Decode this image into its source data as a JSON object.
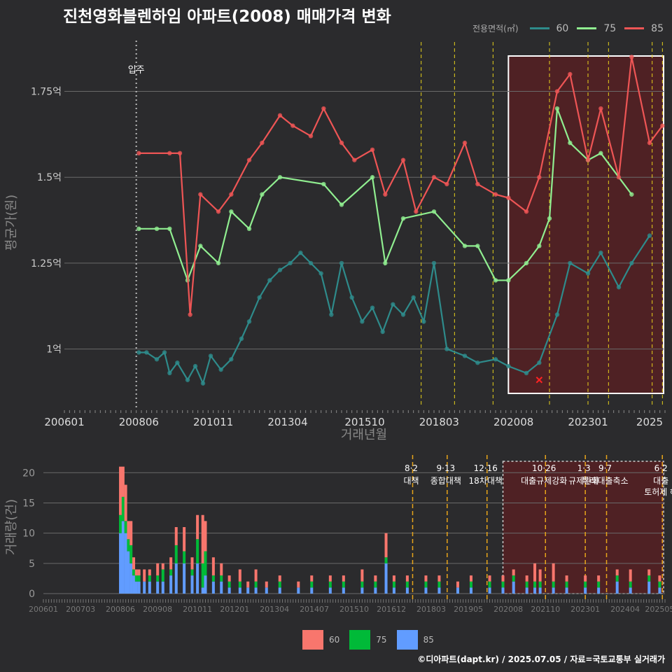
{
  "title": "진천영화블렌하임 아파트(2008) 매매가격 변화",
  "legend": {
    "title": "전용면적(㎡)",
    "items": [
      {
        "label": "60",
        "color": "#2e8b8b"
      },
      {
        "label": "75",
        "color": "#90ee90"
      },
      {
        "label": "85",
        "color": "#ee5555"
      }
    ]
  },
  "bar_legend": [
    {
      "label": "60",
      "color": "#f8766d"
    },
    {
      "label": "75",
      "color": "#00ba38"
    },
    {
      "label": "85",
      "color": "#619cff"
    }
  ],
  "footer": "©디아파트(dapt.kr) / 2025.07.05 / 자료=국토교통부 실거래가",
  "chart_data": [
    {
      "type": "line",
      "ylabel": "평균가(원)",
      "xlabel": "거래년월",
      "x_ticks": [
        "200601",
        "200806",
        "201011",
        "201304",
        "201510",
        "201803",
        "202008",
        "202301",
        "2025"
      ],
      "y_ticks": [
        "1억",
        "1.25억",
        "1.5억",
        "1.75억"
      ],
      "ylim": [
        0.83,
        1.91
      ],
      "xlim": [
        "2006-01",
        "2025-07"
      ],
      "annotations": [
        {
          "x": "2008-05",
          "label": "입주"
        }
      ],
      "policy_lines": [
        "2017-08",
        "2018-09",
        "2019-12",
        "2021-10",
        "2023-01",
        "2023-09",
        "2025-02",
        "2025-06"
      ],
      "highlight_range": [
        "2020-06",
        "2025-07"
      ],
      "marker": {
        "x": "2021-06",
        "y": 0.91
      },
      "series": [
        {
          "name": "60",
          "color": "#2e8b8b",
          "points": [
            [
              "2008-06",
              0.99
            ],
            [
              "2008-09",
              0.99
            ],
            [
              "2009-01",
              0.97
            ],
            [
              "2009-04",
              0.99
            ],
            [
              "2009-06",
              0.93
            ],
            [
              "2009-09",
              0.96
            ],
            [
              "2010-01",
              0.91
            ],
            [
              "2010-04",
              0.95
            ],
            [
              "2010-07",
              0.9
            ],
            [
              "2010-10",
              0.98
            ],
            [
              "2011-02",
              0.94
            ],
            [
              "2011-06",
              0.97
            ],
            [
              "2011-10",
              1.03
            ],
            [
              "2012-01",
              1.08
            ],
            [
              "2012-05",
              1.15
            ],
            [
              "2012-09",
              1.2
            ],
            [
              "2013-01",
              1.23
            ],
            [
              "2013-05",
              1.25
            ],
            [
              "2013-09",
              1.28
            ],
            [
              "2014-01",
              1.25
            ],
            [
              "2014-05",
              1.22
            ],
            [
              "2014-09",
              1.1
            ],
            [
              "2015-01",
              1.25
            ],
            [
              "2015-05",
              1.15
            ],
            [
              "2015-09",
              1.08
            ],
            [
              "2016-01",
              1.12
            ],
            [
              "2016-05",
              1.05
            ],
            [
              "2016-09",
              1.13
            ],
            [
              "2017-01",
              1.1
            ],
            [
              "2017-05",
              1.15
            ],
            [
              "2017-09",
              1.08
            ],
            [
              "2018-01",
              1.25
            ],
            [
              "2018-06",
              1.0
            ],
            [
              "2019-01",
              0.98
            ],
            [
              "2019-06",
              0.96
            ],
            [
              "2020-01",
              0.97
            ],
            [
              "2020-06",
              0.95
            ],
            [
              "2021-01",
              0.93
            ],
            [
              "2021-06",
              0.96
            ],
            [
              "2022-01",
              1.1
            ],
            [
              "2022-06",
              1.25
            ],
            [
              "2023-01",
              1.22
            ],
            [
              "2023-06",
              1.28
            ],
            [
              "2024-01",
              1.18
            ],
            [
              "2024-06",
              1.25
            ],
            [
              "2025-01",
              1.33
            ]
          ]
        },
        {
          "name": "75",
          "color": "#90ee90",
          "points": [
            [
              "2008-06",
              1.35
            ],
            [
              "2009-01",
              1.35
            ],
            [
              "2009-06",
              1.35
            ],
            [
              "2010-01",
              1.2
            ],
            [
              "2010-06",
              1.3
            ],
            [
              "2011-01",
              1.25
            ],
            [
              "2011-06",
              1.4
            ],
            [
              "2012-01",
              1.35
            ],
            [
              "2012-06",
              1.45
            ],
            [
              "2013-01",
              1.5
            ],
            [
              "2014-06",
              1.48
            ],
            [
              "2015-01",
              1.42
            ],
            [
              "2016-01",
              1.5
            ],
            [
              "2016-06",
              1.25
            ],
            [
              "2017-01",
              1.38
            ],
            [
              "2018-01",
              1.4
            ],
            [
              "2019-01",
              1.3
            ],
            [
              "2019-06",
              1.3
            ],
            [
              "2020-01",
              1.2
            ],
            [
              "2020-06",
              1.2
            ],
            [
              "2021-01",
              1.25
            ],
            [
              "2021-06",
              1.3
            ],
            [
              "2021-10",
              1.38
            ],
            [
              "2022-01",
              1.7
            ],
            [
              "2022-06",
              1.6
            ],
            [
              "2023-01",
              1.55
            ],
            [
              "2023-06",
              1.57
            ],
            [
              "2024-06",
              1.45
            ]
          ]
        },
        {
          "name": "85",
          "color": "#ee5555",
          "points": [
            [
              "2008-06",
              1.57
            ],
            [
              "2009-06",
              1.57
            ],
            [
              "2009-10",
              1.57
            ],
            [
              "2010-02",
              1.1
            ],
            [
              "2010-06",
              1.45
            ],
            [
              "2011-01",
              1.4
            ],
            [
              "2011-06",
              1.45
            ],
            [
              "2012-01",
              1.55
            ],
            [
              "2012-06",
              1.6
            ],
            [
              "2013-01",
              1.68
            ],
            [
              "2013-06",
              1.65
            ],
            [
              "2014-01",
              1.62
            ],
            [
              "2014-06",
              1.7
            ],
            [
              "2015-01",
              1.6
            ],
            [
              "2015-06",
              1.55
            ],
            [
              "2016-01",
              1.58
            ],
            [
              "2016-06",
              1.45
            ],
            [
              "2017-01",
              1.55
            ],
            [
              "2017-06",
              1.4
            ],
            [
              "2018-01",
              1.5
            ],
            [
              "2018-06",
              1.48
            ],
            [
              "2019-01",
              1.6
            ],
            [
              "2019-06",
              1.48
            ],
            [
              "2020-01",
              1.45
            ],
            [
              "2020-06",
              1.44
            ],
            [
              "2021-01",
              1.4
            ],
            [
              "2021-06",
              1.5
            ],
            [
              "2022-01",
              1.75
            ],
            [
              "2022-06",
              1.8
            ],
            [
              "2023-01",
              1.55
            ],
            [
              "2023-06",
              1.7
            ],
            [
              "2024-01",
              1.5
            ],
            [
              "2024-06",
              1.85
            ],
            [
              "2025-01",
              1.6
            ],
            [
              "2025-06",
              1.65
            ]
          ]
        }
      ]
    },
    {
      "type": "bar",
      "ylabel": "거래량(건)",
      "ylim": [
        0,
        22
      ],
      "y_ticks": [
        "0",
        "5",
        "10",
        "15",
        "20"
      ],
      "x_ticks": [
        "200601",
        "200703",
        "200806",
        "200908",
        "201011",
        "201201",
        "201304",
        "201407",
        "201510",
        "201612",
        "201803",
        "201905",
        "202008",
        "202110",
        "202301",
        "202404",
        "202505"
      ],
      "policies": [
        {
          "x": "2017-08",
          "date": "8·2",
          "label": "대책"
        },
        {
          "x": "2018-09",
          "date": "9·13",
          "label": "종합대책"
        },
        {
          "x": "2019-12",
          "date": "12·16",
          "label": "18차대책"
        },
        {
          "x": "2021-10",
          "date": "10·26",
          "label": "대출규제강화"
        },
        {
          "x": "2023-01",
          "date": "1·3",
          "label": "규제완화"
        },
        {
          "x": "2023-09",
          "date": "9·7",
          "label": "특례대출축소"
        },
        {
          "x": "2025-06",
          "date": "6·2",
          "label": "대출"
        },
        {
          "x": "2025-06",
          "date": "",
          "label": "토허제 해"
        }
      ],
      "highlight_range": [
        "2020-06",
        "2025-07"
      ],
      "series_names": [
        "60",
        "75",
        "85"
      ],
      "bars": [
        [
          "2008-06",
          8,
          3,
          10
        ],
        [
          "2008-07",
          5,
          4,
          12
        ],
        [
          "2008-08",
          6,
          2,
          10
        ],
        [
          "2008-09",
          3,
          2,
          7
        ],
        [
          "2008-10",
          4,
          3,
          5
        ],
        [
          "2008-11",
          2,
          1,
          3
        ],
        [
          "2008-12",
          1,
          1,
          2
        ],
        [
          "2009-01",
          1,
          1,
          2
        ],
        [
          "2009-03",
          2,
          0,
          2
        ],
        [
          "2009-05",
          1,
          1,
          2
        ],
        [
          "2009-08",
          2,
          1,
          2
        ],
        [
          "2009-10",
          1,
          2,
          2
        ],
        [
          "2010-01",
          2,
          1,
          3
        ],
        [
          "2010-03",
          3,
          3,
          5
        ],
        [
          "2010-06",
          4,
          2,
          5
        ],
        [
          "2010-09",
          2,
          1,
          3
        ],
        [
          "2010-11",
          4,
          4,
          5
        ],
        [
          "2011-01",
          8,
          4,
          1
        ],
        [
          "2011-02",
          5,
          4,
          3
        ],
        [
          "2011-05",
          3,
          1,
          2
        ],
        [
          "2011-08",
          2,
          1,
          2
        ],
        [
          "2011-11",
          1,
          1,
          1
        ],
        [
          "2012-03",
          2,
          1,
          1
        ],
        [
          "2012-06",
          1,
          0,
          1
        ],
        [
          "2012-09",
          2,
          1,
          1
        ],
        [
          "2013-01",
          1,
          0,
          1
        ],
        [
          "2013-06",
          1,
          1,
          1
        ],
        [
          "2014-01",
          1,
          0,
          1
        ],
        [
          "2014-06",
          1,
          1,
          1
        ],
        [
          "2015-01",
          1,
          1,
          1
        ],
        [
          "2015-06",
          1,
          1,
          1
        ],
        [
          "2016-01",
          2,
          1,
          1
        ],
        [
          "2016-06",
          1,
          1,
          1
        ],
        [
          "2016-10",
          4,
          1,
          5
        ],
        [
          "2017-01",
          1,
          1,
          1
        ],
        [
          "2017-06",
          1,
          1,
          1
        ],
        [
          "2018-01",
          1,
          1,
          1
        ],
        [
          "2018-06",
          1,
          1,
          1
        ],
        [
          "2019-01",
          1,
          0,
          1
        ],
        [
          "2019-06",
          1,
          1,
          1
        ],
        [
          "2020-01",
          1,
          1,
          1
        ],
        [
          "2020-06",
          1,
          1,
          1
        ],
        [
          "2020-10",
          1,
          1,
          2
        ],
        [
          "2021-03",
          1,
          1,
          1
        ],
        [
          "2021-06",
          3,
          1,
          1
        ],
        [
          "2021-08",
          2,
          1,
          1
        ],
        [
          "2022-01",
          3,
          1,
          1
        ],
        [
          "2022-06",
          1,
          1,
          1
        ],
        [
          "2023-01",
          1,
          1,
          1
        ],
        [
          "2023-06",
          1,
          1,
          1
        ],
        [
          "2024-01",
          1,
          1,
          2
        ],
        [
          "2024-06",
          2,
          1,
          1
        ],
        [
          "2025-01",
          1,
          1,
          2
        ],
        [
          "2025-05",
          1,
          1,
          1
        ]
      ]
    }
  ]
}
